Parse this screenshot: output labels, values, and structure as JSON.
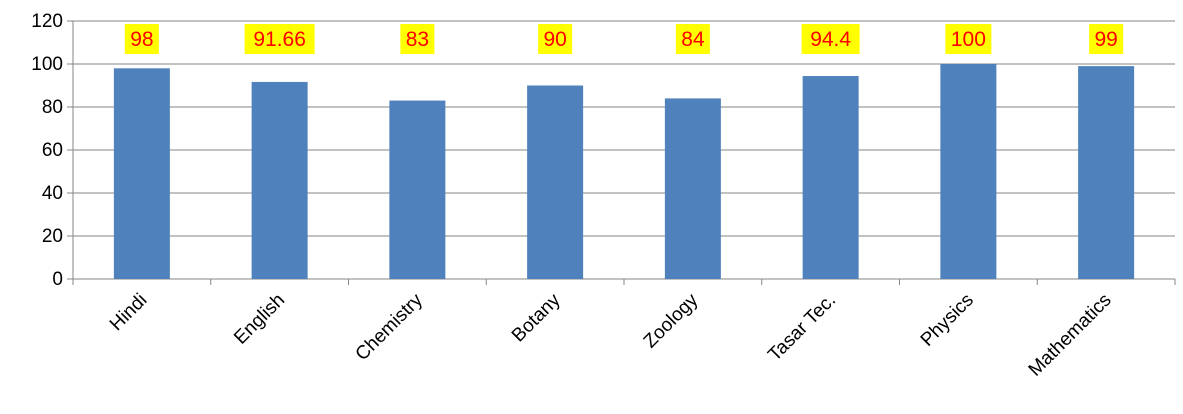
{
  "chart_data": {
    "type": "bar",
    "categories": [
      "Hindi",
      "English",
      "Chemistry",
      "Botany",
      "Zoology",
      "Tasar Tec.",
      "Physics",
      "Mathematics"
    ],
    "values": [
      98,
      91.66,
      83,
      90,
      84,
      94.4,
      100,
      99
    ],
    "value_labels": [
      "98",
      "91.66",
      "83",
      "90",
      "84",
      "94.4",
      "100",
      "99"
    ],
    "title": "",
    "xlabel": "",
    "ylabel": "",
    "ylim": [
      0,
      120
    ],
    "yticks": [
      0,
      20,
      40,
      60,
      80,
      100,
      120
    ],
    "ytick_labels": [
      "0",
      "20",
      "40",
      "60",
      "80",
      "100",
      "120"
    ],
    "grid": true,
    "legend": "none",
    "colors": {
      "bar": "#4f81bd",
      "label_bg": "#ffff00",
      "label_text": "#ff0000",
      "grid": "#868686",
      "axis": "#868686"
    }
  }
}
